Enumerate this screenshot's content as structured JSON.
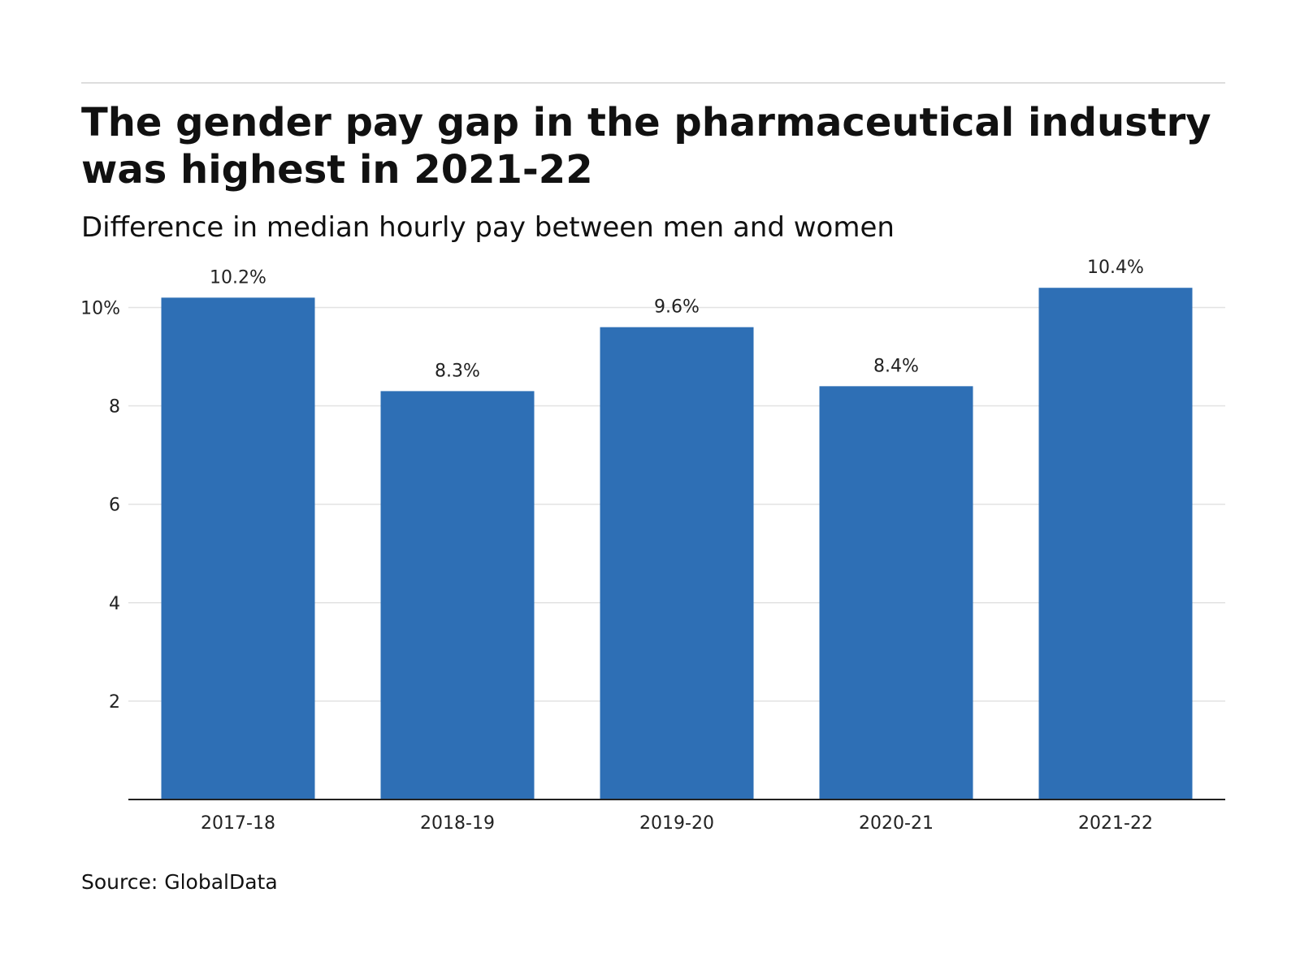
{
  "header": {
    "title": "The gender pay gap in the pharmaceutical industry was highest in 2021-22",
    "subtitle": "Difference in median hourly pay between men and women"
  },
  "footer": {
    "source": "Source: GlobalData"
  },
  "colors": {
    "bar": "#2E6FB5"
  },
  "chart_data": {
    "type": "bar",
    "title": "The gender pay gap in the pharmaceutical industry was highest in 2021-22",
    "subtitle": "Difference in median hourly pay between men and women",
    "categories": [
      "2017-18",
      "2018-19",
      "2019-20",
      "2020-21",
      "2021-22"
    ],
    "values": [
      10.2,
      8.3,
      9.6,
      8.4,
      10.4
    ],
    "data_labels": [
      "10.2%",
      "8.3%",
      "9.6%",
      "8.4%",
      "10.4%"
    ],
    "xlabel": "",
    "ylabel": "",
    "ylim": [
      0,
      10.8
    ],
    "yticks": [
      2,
      4,
      6,
      8,
      10
    ],
    "ytick_labels": [
      "2",
      "4",
      "6",
      "8",
      "10%"
    ],
    "grid": true,
    "legend": "none"
  }
}
